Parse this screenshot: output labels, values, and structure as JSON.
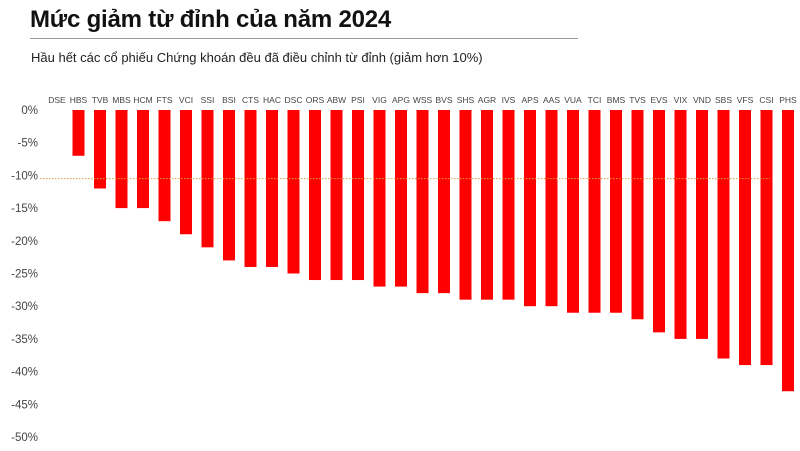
{
  "title": "Mức giảm từ đỉnh của năm 2024",
  "subtitle": "Hầu hết các cổ phiếu Chứng khoán đều đã điều chỉnh từ đỉnh (giảm hơn 10%)",
  "colors": {
    "bar": "#ff0000",
    "reference_line": "#d9a040",
    "axis_text": "#444444"
  },
  "chart_data": {
    "type": "bar",
    "title": "Mức giảm từ đỉnh của năm 2024",
    "subtitle": "Hầu hết các cổ phiếu Chứng khoán đều đã điều chỉnh từ đỉnh (giảm hơn 10%)",
    "categories": [
      "DSE",
      "HBS",
      "TVB",
      "MBS",
      "HCM",
      "FTS",
      "VCI",
      "SSI",
      "BSI",
      "CTS",
      "HAC",
      "DSC",
      "ORS",
      "ABW",
      "PSI",
      "VIG",
      "APG",
      "WSS",
      "BVS",
      "SHS",
      "AGR",
      "IVS",
      "APS",
      "AAS",
      "VUA",
      "TCI",
      "BMS",
      "TVS",
      "EVS",
      "VIX",
      "VND",
      "SBS",
      "VFS",
      "CSI",
      "PHS"
    ],
    "values": [
      0,
      -7,
      -12,
      -15,
      -15,
      -17,
      -19,
      -21,
      -23,
      -24,
      -24,
      -25,
      -26,
      -26,
      -26,
      -27,
      -27,
      -28,
      -28,
      -29,
      -29,
      -29,
      -30,
      -30,
      -31,
      -31,
      -31,
      -32,
      -34,
      -35,
      -35,
      -38,
      -39,
      -39,
      -43
    ],
    "yticks": [
      "0%",
      "-5%",
      "-10%",
      "-15%",
      "-20%",
      "-25%",
      "-30%",
      "-35%",
      "-40%",
      "-45%",
      "-50%"
    ],
    "ylim": [
      -50,
      0
    ],
    "reference_line": -10.5,
    "category_axis_position": "top",
    "grid": false,
    "legend": "none"
  }
}
